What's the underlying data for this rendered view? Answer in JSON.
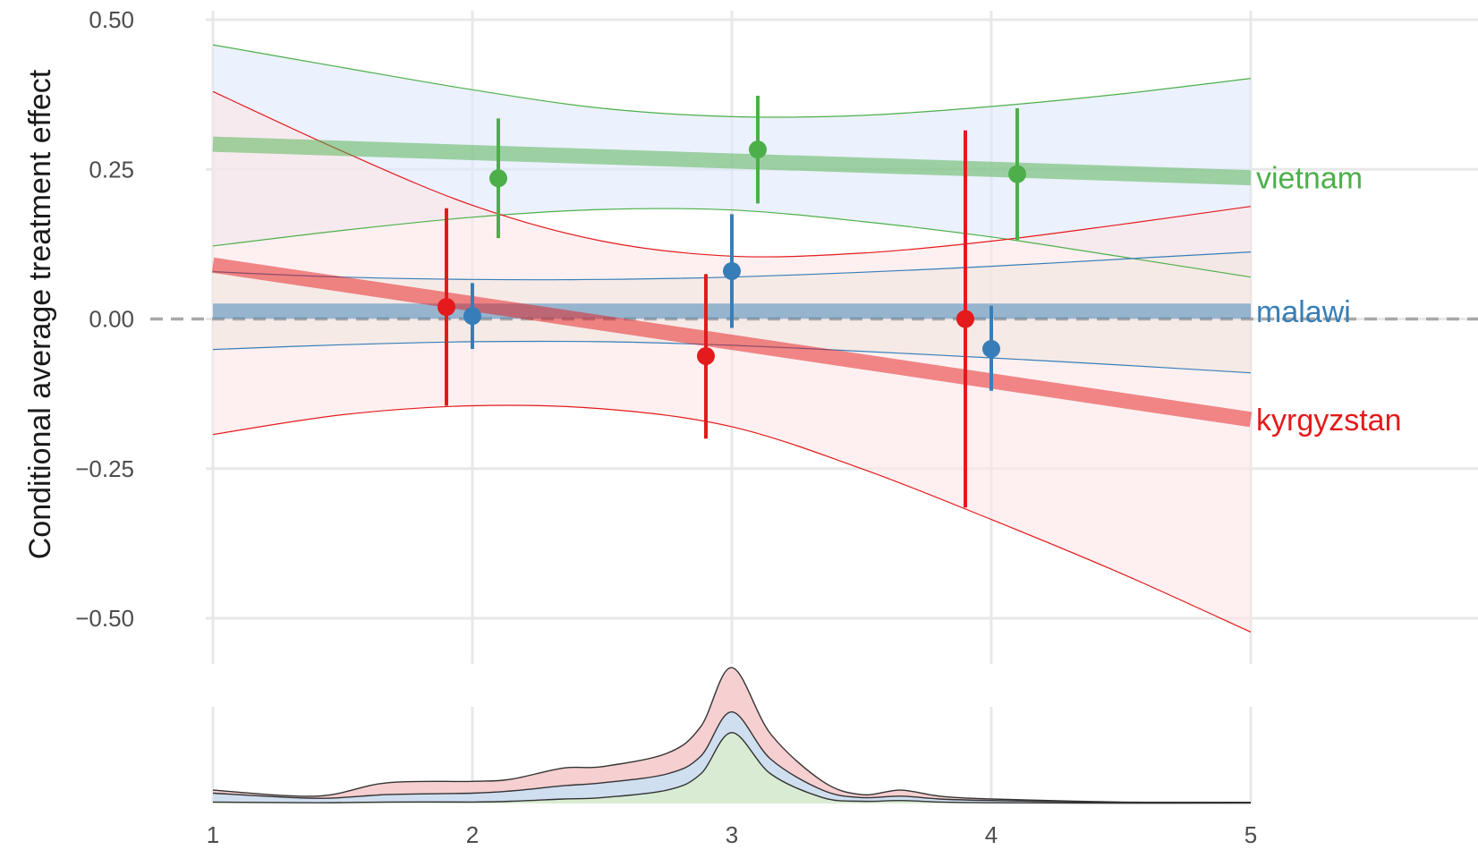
{
  "chart_data": [
    {
      "type": "line",
      "ylabel": "Conditional average treatment effect",
      "xlim": [
        1,
        5
      ],
      "ylim": [
        -0.5,
        0.5
      ],
      "x_ticks": [
        1,
        2,
        3,
        4,
        5
      ],
      "y_ticks": [
        {
          "value": 0.5,
          "label": "0.50"
        },
        {
          "value": 0.25,
          "label": "0.25"
        },
        {
          "value": 0.0,
          "label": "0.00"
        },
        {
          "value": -0.25,
          "label": "−0.25"
        },
        {
          "value": -0.5,
          "label": "−0.50"
        }
      ],
      "reference_line": {
        "y": 0,
        "style": "dashed"
      },
      "grid": true,
      "legend": "direct labels at right end of lines",
      "series": [
        {
          "name": "vietnam",
          "color": "#4daf4a",
          "band_fill": "#dde8fb",
          "line": {
            "x": [
              1,
              5
            ],
            "y": [
              0.292,
              0.236
            ]
          },
          "ci_band": {
            "x": [
              1,
              1.5,
              2,
              2.5,
              3,
              3.5,
              4,
              4.5,
              5
            ],
            "upper": [
              0.458,
              0.42,
              0.383,
              0.352,
              0.338,
              0.34,
              0.355,
              0.376,
              0.402
            ],
            "lower": [
              0.122,
              0.148,
              0.17,
              0.183,
              0.182,
              0.163,
              0.137,
              0.104,
              0.07
            ]
          },
          "points": [
            {
              "x": 2.1,
              "y": 0.235,
              "low": 0.135,
              "high": 0.335
            },
            {
              "x": 3.1,
              "y": 0.283,
              "low": 0.193,
              "high": 0.373
            },
            {
              "x": 4.1,
              "y": 0.242,
              "low": 0.132,
              "high": 0.352
            }
          ]
        },
        {
          "name": "malawi",
          "color": "#377eb8",
          "band_fill": "#dde6d3",
          "line": {
            "x": [
              1,
              5
            ],
            "y": [
              0.013,
              0.013
            ]
          },
          "ci_band": {
            "x": [
              1,
              1.5,
              2,
              2.5,
              3,
              3.5,
              4,
              4.5,
              5
            ],
            "upper": [
              0.079,
              0.07,
              0.066,
              0.066,
              0.07,
              0.078,
              0.088,
              0.1,
              0.112
            ],
            "lower": [
              -0.051,
              -0.043,
              -0.038,
              -0.038,
              -0.044,
              -0.054,
              -0.065,
              -0.077,
              -0.09
            ]
          },
          "points": [
            {
              "x": 2.0,
              "y": 0.005,
              "low": -0.05,
              "high": 0.06
            },
            {
              "x": 3.0,
              "y": 0.08,
              "low": -0.015,
              "high": 0.175
            },
            {
              "x": 4.0,
              "y": -0.05,
              "low": -0.12,
              "high": 0.022
            }
          ]
        },
        {
          "name": "kyrgyzstan",
          "color": "#e41a1c",
          "band_fill": "#fde6e6",
          "line": {
            "x": [
              1,
              5
            ],
            "y": [
              0.09,
              -0.168
            ]
          },
          "ci_band": {
            "x": [
              1,
              1.5,
              2,
              2.5,
              3,
              3.5,
              4,
              4.5,
              5
            ],
            "upper": [
              0.38,
              0.28,
              0.19,
              0.13,
              0.105,
              0.11,
              0.13,
              0.158,
              0.188
            ],
            "lower": [
              -0.193,
              -0.16,
              -0.145,
              -0.15,
              -0.18,
              -0.25,
              -0.335,
              -0.425,
              -0.523
            ]
          },
          "points": [
            {
              "x": 1.9,
              "y": 0.02,
              "low": -0.145,
              "high": 0.185
            },
            {
              "x": 2.9,
              "y": -0.062,
              "low": -0.2,
              "high": 0.075
            },
            {
              "x": 3.9,
              "y": 0.0,
              "low": -0.315,
              "high": 0.315
            }
          ]
        }
      ]
    },
    {
      "type": "area",
      "stacked": true,
      "xlim": [
        1,
        5
      ],
      "x_ticks": [
        1,
        2,
        3,
        4,
        5
      ],
      "x": [
        1.0,
        1.4,
        1.67,
        2.0,
        2.15,
        2.35,
        2.5,
        2.75,
        2.88,
        3.0,
        3.15,
        3.35,
        3.5,
        3.65,
        3.8,
        4.0,
        4.5,
        5.0
      ],
      "layers": [
        {
          "color": "#d9ecd3",
          "values": [
            0.01,
            0.005,
            0.01,
            0.01,
            0.015,
            0.03,
            0.04,
            0.09,
            0.2,
            0.48,
            0.2,
            0.04,
            0.015,
            0.02,
            0.01,
            0.005,
            0.002,
            0.003
          ]
        },
        {
          "color": "#d0dff0",
          "values": [
            0.06,
            0.03,
            0.05,
            0.06,
            0.07,
            0.09,
            0.1,
            0.11,
            0.12,
            0.14,
            0.1,
            0.05,
            0.025,
            0.03,
            0.02,
            0.015,
            0.005,
            0.003
          ]
        },
        {
          "color": "#f6cfd0",
          "values": [
            0.02,
            0.015,
            0.08,
            0.08,
            0.08,
            0.12,
            0.11,
            0.14,
            0.2,
            0.3,
            0.17,
            0.06,
            0.02,
            0.04,
            0.02,
            0.01,
            0.003,
            0.002
          ]
        }
      ]
    }
  ]
}
